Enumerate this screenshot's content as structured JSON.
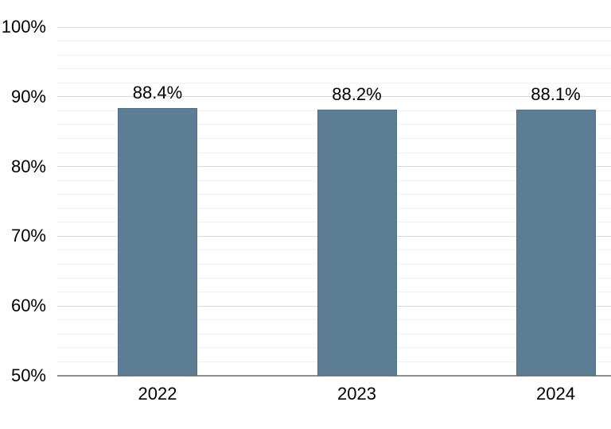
{
  "chart_data": {
    "type": "bar",
    "title": "",
    "xlabel": "",
    "ylabel": "",
    "categories": [
      "2022",
      "2023",
      "2024"
    ],
    "values": [
      88.4,
      88.2,
      88.1
    ],
    "value_labels": [
      "88.4%",
      "88.2%",
      "88.1%"
    ],
    "ylim": [
      50,
      100
    ],
    "y_major_step": 10,
    "y_minor_step": 2,
    "y_tick_labels": [
      "50%",
      "60%",
      "70%",
      "80%",
      "90%",
      "100%"
    ],
    "grid": "horizontal major and minor gridlines on",
    "legend": "none",
    "colors": {
      "bar_fill": "#5C7D93",
      "bar_border": "#4F6F85",
      "major_gridline": "#D9D9D9",
      "minor_gridline": "#F2F2F2",
      "axis_line": "#8F8F8F",
      "label_text": "#000000",
      "background": "#FFFFFF"
    }
  }
}
